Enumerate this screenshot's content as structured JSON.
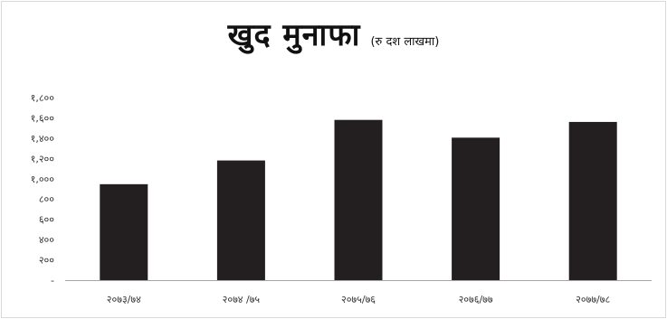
{
  "chart_data": {
    "type": "bar",
    "title": "खुद मुनाफा",
    "subtitle": "(रु दश लाखमा)",
    "categories": [
      "२०७३/७४",
      "२०७४ /७५",
      "२०७५/७६",
      "२०७६/७७",
      "२०७७/७८"
    ],
    "values": [
      946,
      1180,
      1580,
      1405,
      1560
    ],
    "ylim": [
      0,
      1800
    ],
    "yticks": [
      0,
      200,
      400,
      600,
      800,
      1000,
      1200,
      1400,
      1600,
      1800
    ],
    "ytick_labels": [
      "-",
      "२००",
      "४००",
      "६००",
      "८००",
      "१,०००",
      "१,२००",
      "१,४००",
      "१,६००",
      "१,८००"
    ],
    "bar_color": "#231f20",
    "axis_color": "#a6a6a6",
    "grid": false,
    "legend": "none"
  }
}
